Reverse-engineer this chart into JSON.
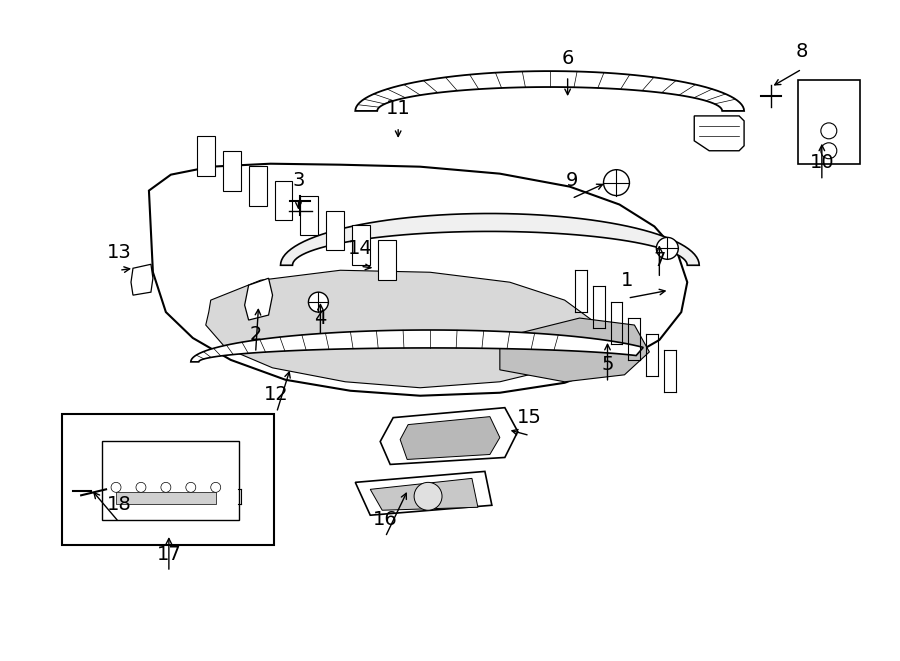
{
  "bg_color": "#ffffff",
  "line_color": "#000000",
  "figsize": [
    9.0,
    6.61
  ],
  "dpi": 100
}
